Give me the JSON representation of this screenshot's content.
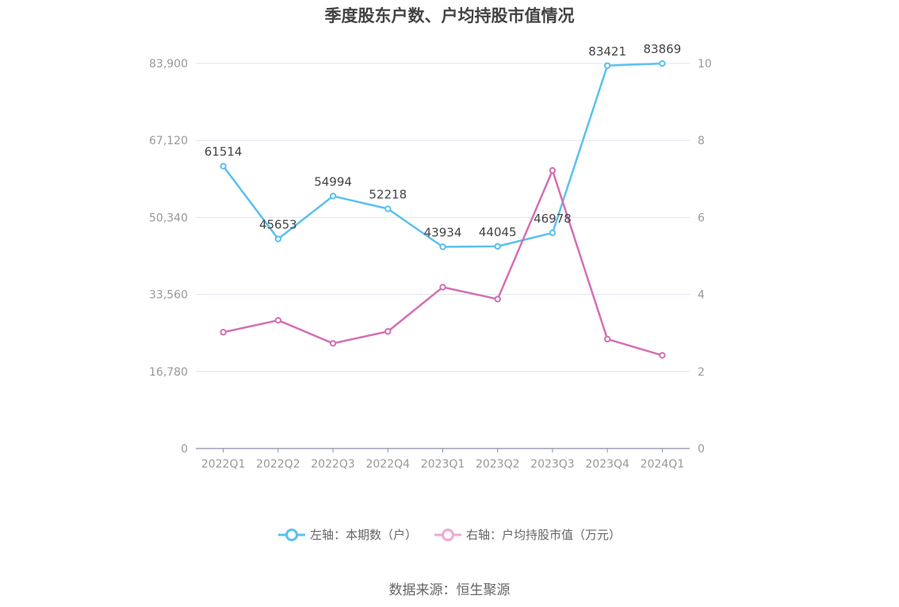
{
  "chart_data": {
    "type": "line",
    "title": "季度股东户数、户均持股市值情况",
    "categories": [
      "2022Q1",
      "2022Q2",
      "2022Q3",
      "2022Q4",
      "2023Q1",
      "2023Q2",
      "2023Q3",
      "2023Q4",
      "2024Q1"
    ],
    "series": [
      {
        "name": "左轴：本期数（户）",
        "axis": "left",
        "color": "#5bc0f0",
        "values": [
          61514,
          45653,
          54994,
          52218,
          43934,
          44045,
          46978,
          83421,
          83869
        ],
        "labels": [
          "61514",
          "45653",
          "54994",
          "52218",
          "43934",
          "44045",
          "46978",
          "83421",
          "83869"
        ]
      },
      {
        "name": "右轴：户均持股市值（万元）",
        "axis": "right",
        "color": "#d36fb4",
        "values": [
          3.02,
          3.33,
          2.73,
          3.04,
          4.19,
          3.88,
          7.22,
          2.84,
          2.42
        ]
      }
    ],
    "left_axis": {
      "ylim": [
        0,
        83900
      ],
      "ticks": [
        "0",
        "16,780",
        "33,560",
        "50,340",
        "67,120",
        "83,900"
      ],
      "tick_values": [
        0,
        16780,
        33560,
        50340,
        67120,
        83900
      ]
    },
    "right_axis": {
      "ylim": [
        0,
        10
      ],
      "ticks": [
        "0",
        "2",
        "4",
        "6",
        "8",
        "10"
      ],
      "tick_values": [
        0,
        2,
        4,
        6,
        8,
        10
      ]
    },
    "grid": true,
    "legend_position": "bottom",
    "source": "数据来源：恒生聚源"
  }
}
